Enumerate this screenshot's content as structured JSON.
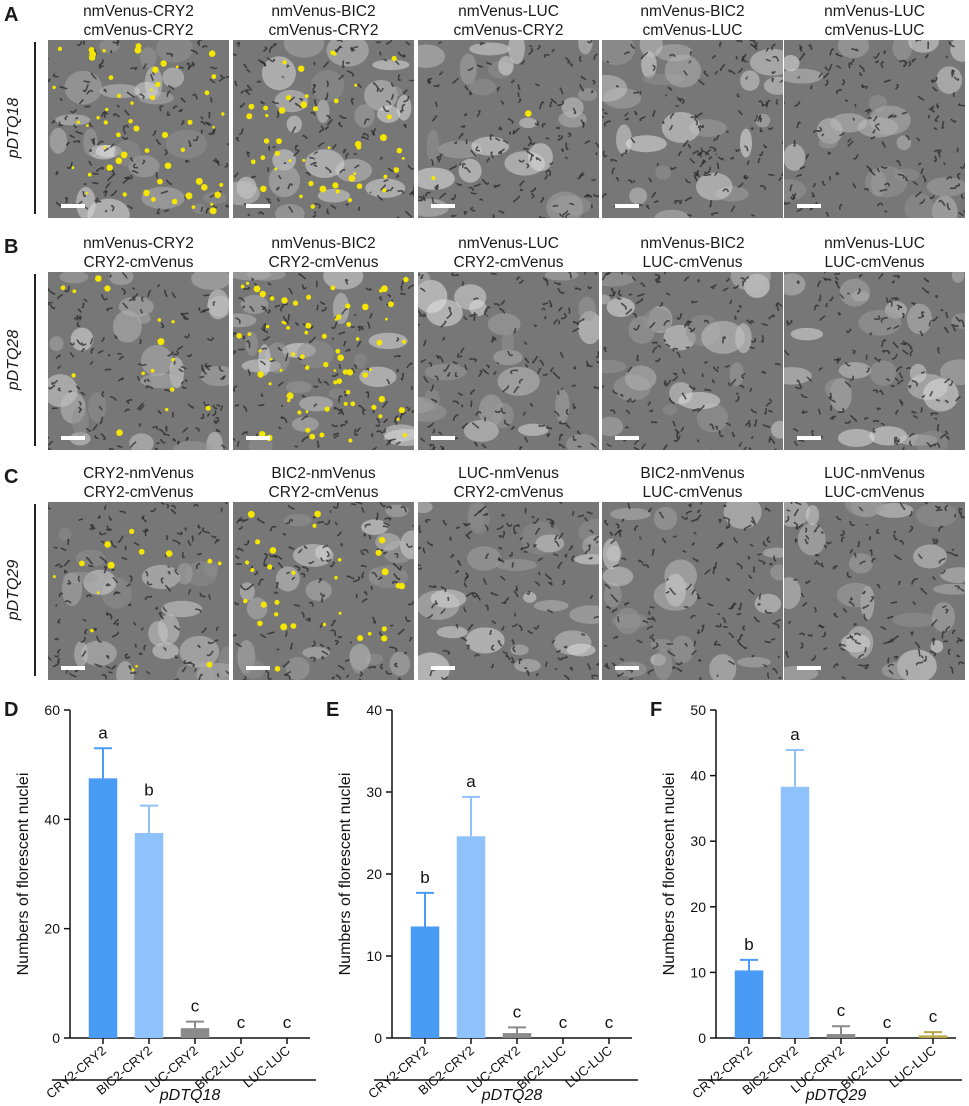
{
  "colors": {
    "yfp": "#f5e600",
    "bar_blue": "#4a9bf5",
    "bar_lightblue": "#8fc1fa",
    "bar_gray": "#8a8a8a",
    "bar_olive": "#b8a84a"
  },
  "rows": [
    {
      "letter": "A",
      "promoter": "pDTQ18",
      "panels": [
        {
          "l1": "nmVenus-CRY2",
          "l2": "cmVenus-CRY2",
          "nuclei": 55
        },
        {
          "l1": "nmVenus-BIC2",
          "l2": "cmVenus-CRY2",
          "nuclei": 45
        },
        {
          "l1": "nmVenus-LUC",
          "l2": "cmVenus-CRY2",
          "nuclei": 2
        },
        {
          "l1": "nmVenus-BIC2",
          "l2": "cmVenus-LUC",
          "nuclei": 0
        },
        {
          "l1": "nmVenus-LUC",
          "l2": "cmVenus-LUC",
          "nuclei": 0
        }
      ]
    },
    {
      "letter": "B",
      "promoter": "pDTQ28",
      "panels": [
        {
          "l1": "nmVenus-CRY2",
          "l2": "CRY2-cmVenus",
          "nuclei": 15
        },
        {
          "l1": "nmVenus-BIC2",
          "l2": "CRY2-cmVenus",
          "nuclei": 70
        },
        {
          "l1": "nmVenus-LUC",
          "l2": "CRY2-cmVenus",
          "nuclei": 0
        },
        {
          "l1": "nmVenus-BIC2",
          "l2": "LUC-cmVenus",
          "nuclei": 0
        },
        {
          "l1": "nmVenus-LUC",
          "l2": "LUC-cmVenus",
          "nuclei": 0
        }
      ]
    },
    {
      "letter": "C",
      "promoter": "pDTQ29",
      "panels": [
        {
          "l1": "CRY2-nmVenus",
          "l2": "CRY2-cmVenus",
          "nuclei": 14
        },
        {
          "l1": "BIC2-nmVenus",
          "l2": "CRY2-cmVenus",
          "nuclei": 30
        },
        {
          "l1": "LUC-nmVenus",
          "l2": "CRY2-cmVenus",
          "nuclei": 0
        },
        {
          "l1": "BIC2-nmVenus",
          "l2": "LUC-cmVenus",
          "nuclei": 0
        },
        {
          "l1": "LUC-nmVenus",
          "l2": "LUC-cmVenus",
          "nuclei": 0
        }
      ]
    }
  ],
  "chart_data": [
    {
      "letter": "D",
      "type": "bar",
      "ylabel": "Numbers of florescent nuclei",
      "xgroup_label": "pDTQ18",
      "ylim": [
        0,
        60
      ],
      "yticks": [
        0,
        20,
        40,
        60
      ],
      "categories": [
        "CRY2-CRY2",
        "BIC2-CRY2",
        "LUC-CRY2",
        "BIC2-LUC",
        "LUC-LUC"
      ],
      "values": [
        47.5,
        37.5,
        1.8,
        0,
        0
      ],
      "errors": [
        5.5,
        5,
        1.2,
        0,
        0
      ],
      "letters": [
        "a",
        "b",
        "c",
        "c",
        "c"
      ],
      "bar_colors": [
        "#4a9bf5",
        "#8fc1fa",
        "#8a8a8a",
        "#8a8a8a",
        "#8a8a8a"
      ]
    },
    {
      "letter": "E",
      "type": "bar",
      "ylabel": "Numbers of florescent nuclei",
      "xgroup_label": "pDTQ28",
      "ylim": [
        0,
        40
      ],
      "yticks": [
        0,
        10,
        20,
        30,
        40
      ],
      "categories": [
        "CRY2-CRY2",
        "BIC2-CRY2",
        "LUC-CRY2",
        "BIC2-LUC",
        "LUC-LUC"
      ],
      "values": [
        13.6,
        24.6,
        0.6,
        0,
        0
      ],
      "errors": [
        4.1,
        4.8,
        0.7,
        0,
        0
      ],
      "letters": [
        "b",
        "a",
        "c",
        "c",
        "c"
      ],
      "bar_colors": [
        "#4a9bf5",
        "#8fc1fa",
        "#8a8a8a",
        "#8a8a8a",
        "#8a8a8a"
      ]
    },
    {
      "letter": "F",
      "type": "bar",
      "ylabel": "Numbers of florescent nuclei",
      "xgroup_label": "pDTQ29",
      "ylim": [
        0,
        50
      ],
      "yticks": [
        0,
        10,
        20,
        30,
        40,
        50
      ],
      "categories": [
        "CRY2-CRY2",
        "BIC2-CRY2",
        "LUC-CRY2",
        "BIC2-LUC",
        "LUC-LUC"
      ],
      "values": [
        10.3,
        38.3,
        0.6,
        0,
        0.4
      ],
      "errors": [
        1.6,
        5.6,
        1.2,
        0,
        0.5
      ],
      "letters": [
        "b",
        "a",
        "c",
        "c",
        "c"
      ],
      "bar_colors": [
        "#4a9bf5",
        "#8fc1fa",
        "#8a8a8a",
        "#8a8a8a",
        "#b8a84a"
      ]
    }
  ]
}
